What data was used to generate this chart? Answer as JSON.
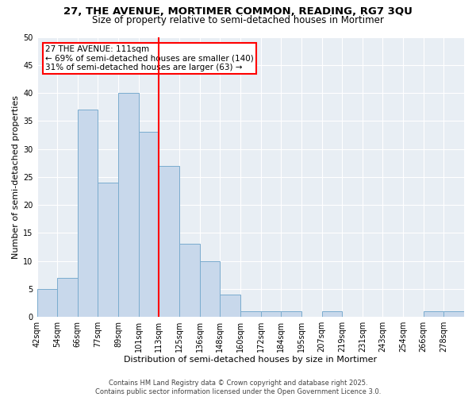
{
  "title1": "27, THE AVENUE, MORTIMER COMMON, READING, RG7 3QU",
  "title2": "Size of property relative to semi-detached houses in Mortimer",
  "xlabel": "Distribution of semi-detached houses by size in Mortimer",
  "ylabel": "Number of semi-detached properties",
  "bin_labels": [
    "42sqm",
    "54sqm",
    "66sqm",
    "77sqm",
    "89sqm",
    "101sqm",
    "113sqm",
    "125sqm",
    "136sqm",
    "148sqm",
    "160sqm",
    "172sqm",
    "184sqm",
    "195sqm",
    "207sqm",
    "219sqm",
    "231sqm",
    "243sqm",
    "254sqm",
    "266sqm",
    "278sqm"
  ],
  "num_bins": 21,
  "heights": [
    5,
    7,
    37,
    24,
    40,
    33,
    27,
    13,
    10,
    4,
    1,
    1,
    1,
    0,
    1,
    0,
    0,
    0,
    0,
    1,
    1
  ],
  "bar_facecolor": "#c8d8eb",
  "bar_edgecolor": "#7aacce",
  "redline_bin": 6,
  "annotation_line1": "27 THE AVENUE: 111sqm",
  "annotation_line2": "← 69% of semi-detached houses are smaller (140)",
  "annotation_line3": "31% of semi-detached houses are larger (63) →",
  "annotation_box_edgecolor": "red",
  "annotation_box_facecolor": "white",
  "redline_color": "red",
  "ylim": [
    0,
    50
  ],
  "yticks": [
    0,
    5,
    10,
    15,
    20,
    25,
    30,
    35,
    40,
    45,
    50
  ],
  "background_color": "#e8eef4",
  "grid_color": "#ffffff",
  "footer_line1": "Contains HM Land Registry data © Crown copyright and database right 2025.",
  "footer_line2": "Contains public sector information licensed under the Open Government Licence 3.0.",
  "title1_fontsize": 9.5,
  "title2_fontsize": 8.5,
  "xlabel_fontsize": 8,
  "ylabel_fontsize": 8,
  "tick_fontsize": 7,
  "annotation_fontsize": 7.5,
  "footer_fontsize": 6
}
